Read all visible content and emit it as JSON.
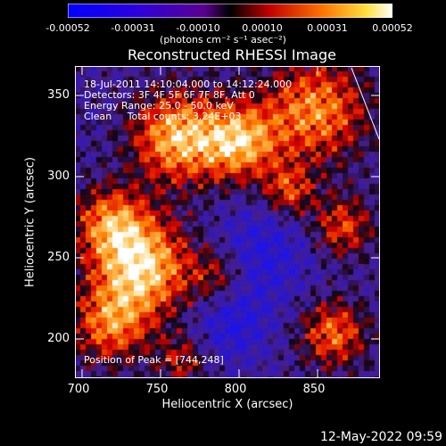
{
  "colorbar": {
    "tick_labels": [
      "-0.00052",
      "-0.00031",
      "-0.00010",
      "0.00010",
      "0.00031",
      "0.00052"
    ],
    "units": "(photons cm⁻² s⁻¹ asec⁻²)"
  },
  "plot": {
    "title": "Reconstructed RHESSI Image",
    "xlabel": "Heliocentric X (arcsec)",
    "ylabel": "Heliocentric Y (arcsec)",
    "x_ticks": [
      "700",
      "750",
      "800",
      "850"
    ],
    "y_ticks": [
      "350",
      "300",
      "250",
      "200"
    ],
    "xlim": [
      698,
      888
    ],
    "ylim": [
      175,
      372
    ],
    "info_lines": [
      "18-Jul-2011 14:10:04.000 to 14:12:24.000",
      "Detectors: 3F 4F 5F 6F 7F 8F, Att 0",
      "Energy Range: 25.0 - 50.0 keV",
      "Clean     Total counts: 3.24E+03"
    ],
    "peak_text": "Position of Peak = [744,248]",
    "colormap": "purple-red-yellow-white"
  },
  "footer": {
    "date": "12-May-2022 09:59"
  }
}
